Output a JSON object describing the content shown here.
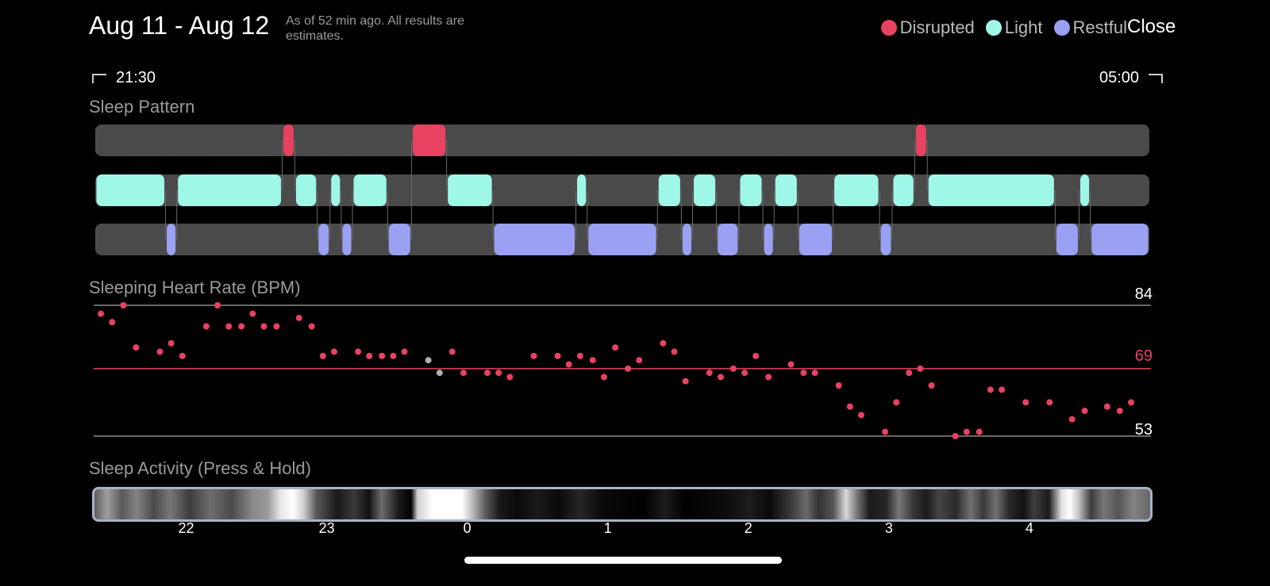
{
  "header": {
    "title": "Aug 11 - Aug 12",
    "note": "As of 52 min ago. All results are estimates.",
    "close_label": "Close"
  },
  "legend": [
    {
      "label": "Disrupted",
      "color": "#e84260"
    },
    {
      "label": "Light",
      "color": "#9ff7e8"
    },
    {
      "label": "Restful",
      "color": "#9aa0f2"
    }
  ],
  "time_range": {
    "start": "21:30",
    "end": "05:00"
  },
  "sleep_pattern": {
    "title": "Sleep Pattern",
    "start_hour": 21.5,
    "end_hour": 29.0,
    "segments": [
      {
        "stage": "light",
        "start": 21.5,
        "end": 22.0
      },
      {
        "stage": "restful",
        "start": 22.0,
        "end": 22.08
      },
      {
        "stage": "light",
        "start": 22.08,
        "end": 22.83
      },
      {
        "stage": "disrupted",
        "start": 22.83,
        "end": 22.92
      },
      {
        "stage": "light",
        "start": 22.92,
        "end": 23.08
      },
      {
        "stage": "restful",
        "start": 23.08,
        "end": 23.17
      },
      {
        "stage": "light",
        "start": 23.17,
        "end": 23.25
      },
      {
        "stage": "restful",
        "start": 23.25,
        "end": 23.33
      },
      {
        "stage": "light",
        "start": 23.33,
        "end": 23.58
      },
      {
        "stage": "restful",
        "start": 23.58,
        "end": 23.75
      },
      {
        "stage": "disrupted",
        "start": 23.75,
        "end": 24.0
      },
      {
        "stage": "light",
        "start": 24.0,
        "end": 24.33
      },
      {
        "stage": "restful",
        "start": 24.33,
        "end": 24.92
      },
      {
        "stage": "light",
        "start": 24.92,
        "end": 25.0
      },
      {
        "stage": "restful",
        "start": 25.0,
        "end": 25.5
      },
      {
        "stage": "light",
        "start": 25.5,
        "end": 25.67
      },
      {
        "stage": "restful",
        "start": 25.67,
        "end": 25.75
      },
      {
        "stage": "light",
        "start": 25.75,
        "end": 25.92
      },
      {
        "stage": "restful",
        "start": 25.92,
        "end": 26.08
      },
      {
        "stage": "light",
        "start": 26.08,
        "end": 26.25
      },
      {
        "stage": "restful",
        "start": 26.25,
        "end": 26.33
      },
      {
        "stage": "light",
        "start": 26.33,
        "end": 26.5
      },
      {
        "stage": "restful",
        "start": 26.5,
        "end": 26.75
      },
      {
        "stage": "light",
        "start": 26.75,
        "end": 27.08
      },
      {
        "stage": "restful",
        "start": 27.08,
        "end": 27.17
      },
      {
        "stage": "light",
        "start": 27.17,
        "end": 27.33
      },
      {
        "stage": "disrupted",
        "start": 27.33,
        "end": 27.42
      },
      {
        "stage": "light",
        "start": 27.42,
        "end": 28.33
      },
      {
        "stage": "restful",
        "start": 28.33,
        "end": 28.5
      },
      {
        "stage": "light",
        "start": 28.5,
        "end": 28.58
      },
      {
        "stage": "restful",
        "start": 28.58,
        "end": 29.0
      }
    ]
  },
  "heart_rate": {
    "title": "Sleeping Heart Rate (BPM)",
    "max_label": "84",
    "avg_label": "69",
    "min_label": "53",
    "max": 84,
    "avg": 69,
    "min": 53,
    "points": [
      {
        "t": 21.54,
        "bpm": 82
      },
      {
        "t": 21.62,
        "bpm": 80
      },
      {
        "t": 21.7,
        "bpm": 84
      },
      {
        "t": 21.79,
        "bpm": 74
      },
      {
        "t": 21.96,
        "bpm": 73
      },
      {
        "t": 22.04,
        "bpm": 75
      },
      {
        "t": 22.12,
        "bpm": 72
      },
      {
        "t": 22.29,
        "bpm": 79
      },
      {
        "t": 22.37,
        "bpm": 84
      },
      {
        "t": 22.45,
        "bpm": 79
      },
      {
        "t": 22.54,
        "bpm": 79
      },
      {
        "t": 22.62,
        "bpm": 82
      },
      {
        "t": 22.7,
        "bpm": 79
      },
      {
        "t": 22.79,
        "bpm": 79
      },
      {
        "t": 22.95,
        "bpm": 81
      },
      {
        "t": 23.04,
        "bpm": 79
      },
      {
        "t": 23.12,
        "bpm": 72
      },
      {
        "t": 23.2,
        "bpm": 73
      },
      {
        "t": 23.37,
        "bpm": 73
      },
      {
        "t": 23.45,
        "bpm": 72
      },
      {
        "t": 23.54,
        "bpm": 72
      },
      {
        "t": 23.62,
        "bpm": 72
      },
      {
        "t": 23.7,
        "bpm": 73
      },
      {
        "t": 23.87,
        "bpm": 71,
        "muted": true
      },
      {
        "t": 23.95,
        "bpm": 68,
        "muted": true
      },
      {
        "t": 24.04,
        "bpm": 73
      },
      {
        "t": 24.12,
        "bpm": 68
      },
      {
        "t": 24.29,
        "bpm": 68
      },
      {
        "t": 24.37,
        "bpm": 68
      },
      {
        "t": 24.45,
        "bpm": 67
      },
      {
        "t": 24.62,
        "bpm": 72
      },
      {
        "t": 24.79,
        "bpm": 72
      },
      {
        "t": 24.87,
        "bpm": 70
      },
      {
        "t": 24.95,
        "bpm": 72
      },
      {
        "t": 25.04,
        "bpm": 71
      },
      {
        "t": 25.12,
        "bpm": 67
      },
      {
        "t": 25.2,
        "bpm": 74
      },
      {
        "t": 25.29,
        "bpm": 69
      },
      {
        "t": 25.37,
        "bpm": 71
      },
      {
        "t": 25.54,
        "bpm": 75
      },
      {
        "t": 25.62,
        "bpm": 73
      },
      {
        "t": 25.7,
        "bpm": 66
      },
      {
        "t": 25.87,
        "bpm": 68
      },
      {
        "t": 25.95,
        "bpm": 67
      },
      {
        "t": 26.04,
        "bpm": 69
      },
      {
        "t": 26.12,
        "bpm": 68
      },
      {
        "t": 26.2,
        "bpm": 72
      },
      {
        "t": 26.29,
        "bpm": 67
      },
      {
        "t": 26.45,
        "bpm": 70
      },
      {
        "t": 26.54,
        "bpm": 68
      },
      {
        "t": 26.62,
        "bpm": 68
      },
      {
        "t": 26.79,
        "bpm": 65
      },
      {
        "t": 26.87,
        "bpm": 60
      },
      {
        "t": 26.95,
        "bpm": 58
      },
      {
        "t": 27.12,
        "bpm": 54
      },
      {
        "t": 27.2,
        "bpm": 61
      },
      {
        "t": 27.29,
        "bpm": 68
      },
      {
        "t": 27.37,
        "bpm": 69
      },
      {
        "t": 27.45,
        "bpm": 65
      },
      {
        "t": 27.62,
        "bpm": 53
      },
      {
        "t": 27.7,
        "bpm": 54
      },
      {
        "t": 27.79,
        "bpm": 54
      },
      {
        "t": 27.87,
        "bpm": 64
      },
      {
        "t": 27.95,
        "bpm": 64
      },
      {
        "t": 28.12,
        "bpm": 61
      },
      {
        "t": 28.29,
        "bpm": 61
      },
      {
        "t": 28.45,
        "bpm": 57
      },
      {
        "t": 28.54,
        "bpm": 59
      },
      {
        "t": 28.7,
        "bpm": 60
      },
      {
        "t": 28.79,
        "bpm": 59
      },
      {
        "t": 28.87,
        "bpm": 61
      }
    ]
  },
  "sleep_activity": {
    "title": "Sleep Activity (Press & Hold)"
  },
  "hour_axis": [
    {
      "label": "22",
      "t": 22
    },
    {
      "label": "23",
      "t": 23
    },
    {
      "label": "0",
      "t": 24
    },
    {
      "label": "1",
      "t": 25
    },
    {
      "label": "2",
      "t": 26
    },
    {
      "label": "3",
      "t": 27
    },
    {
      "label": "4",
      "t": 28
    }
  ],
  "colors": {
    "disrupted": "#e84260",
    "light": "#9ff7e8",
    "restful": "#9aa0f2",
    "track": "#4a4a4a",
    "muted_point": "#b0b0b0"
  }
}
